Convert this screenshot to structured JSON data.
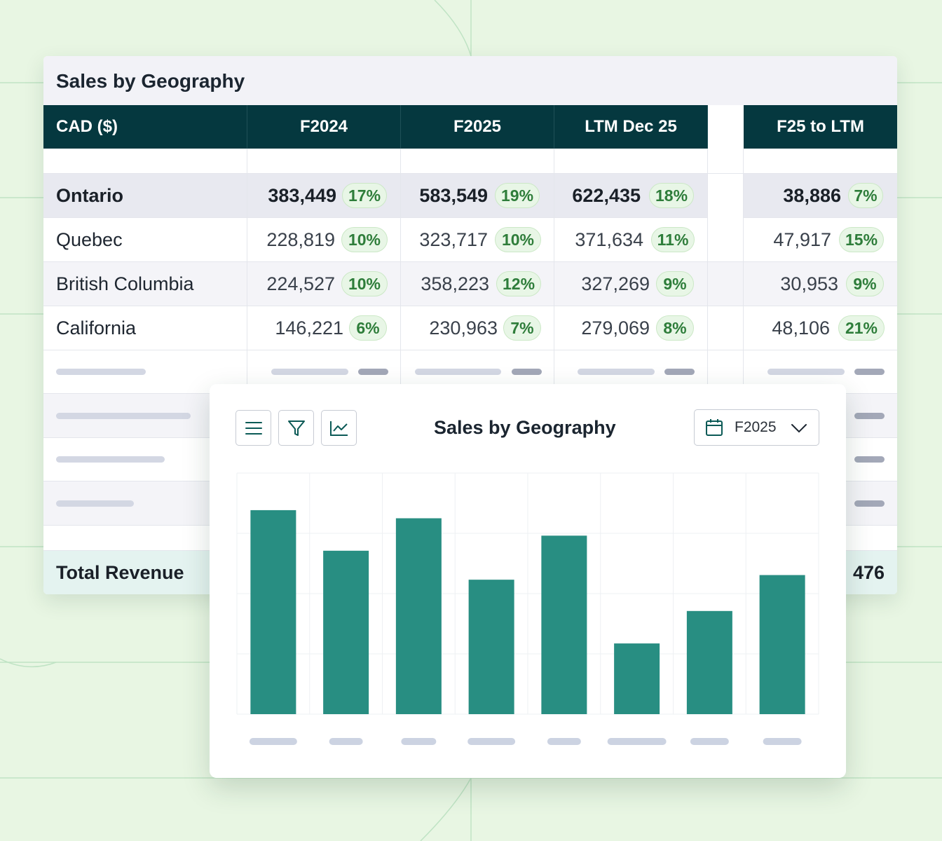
{
  "table": {
    "title": "Sales by Geography",
    "headers": [
      "CAD ($)",
      "F2024",
      "F2025",
      "LTM Dec 25",
      "F25 to LTM"
    ],
    "rows": [
      {
        "name": "Ontario",
        "f2024": "383,449",
        "f2024_pct": "17%",
        "f2025": "583,549",
        "f2025_pct": "19%",
        "ltm": "622,435",
        "ltm_pct": "18%",
        "delta": "38,886",
        "delta_pct": "7%"
      },
      {
        "name": "Quebec",
        "f2024": "228,819",
        "f2024_pct": "10%",
        "f2025": "323,717",
        "f2025_pct": "10%",
        "ltm": "371,634",
        "ltm_pct": "11%",
        "delta": "47,917",
        "delta_pct": "15%"
      },
      {
        "name": "British Columbia",
        "f2024": "224,527",
        "f2024_pct": "10%",
        "f2025": "358,223",
        "f2025_pct": "12%",
        "ltm": "327,269",
        "ltm_pct": "9%",
        "delta": "30,953",
        "delta_pct": "9%"
      },
      {
        "name": "California",
        "f2024": "146,221",
        "f2024_pct": "6%",
        "f2025": "230,963",
        "f2025_pct": "7%",
        "ltm": "279,069",
        "ltm_pct": "8%",
        "delta": "48,106",
        "delta_pct": "21%"
      }
    ],
    "total_label": "Total Revenue",
    "total_value_visible": "476"
  },
  "chart_panel": {
    "title": "Sales by Geography",
    "period": "F2025",
    "icons": [
      "menu-icon",
      "filter-icon",
      "line-chart-icon",
      "calendar-icon",
      "chevron-down-icon"
    ]
  },
  "chart_data": {
    "type": "bar",
    "categories": [
      "",
      "",
      "",
      "",
      "",
      "",
      "",
      ""
    ],
    "values": [
      88,
      70.5,
      84.5,
      58,
      77,
      30.5,
      44.5,
      60
    ],
    "ylim": [
      0,
      104
    ],
    "grid": true,
    "bar_color": "#288e82"
  },
  "colors": {
    "header_bg": "#05383f",
    "accent_green": "#2e7d3a",
    "pill_bg": "#e8f6e6",
    "total_row_bg": "#e4f3f0",
    "background": "#e8f6e3"
  }
}
